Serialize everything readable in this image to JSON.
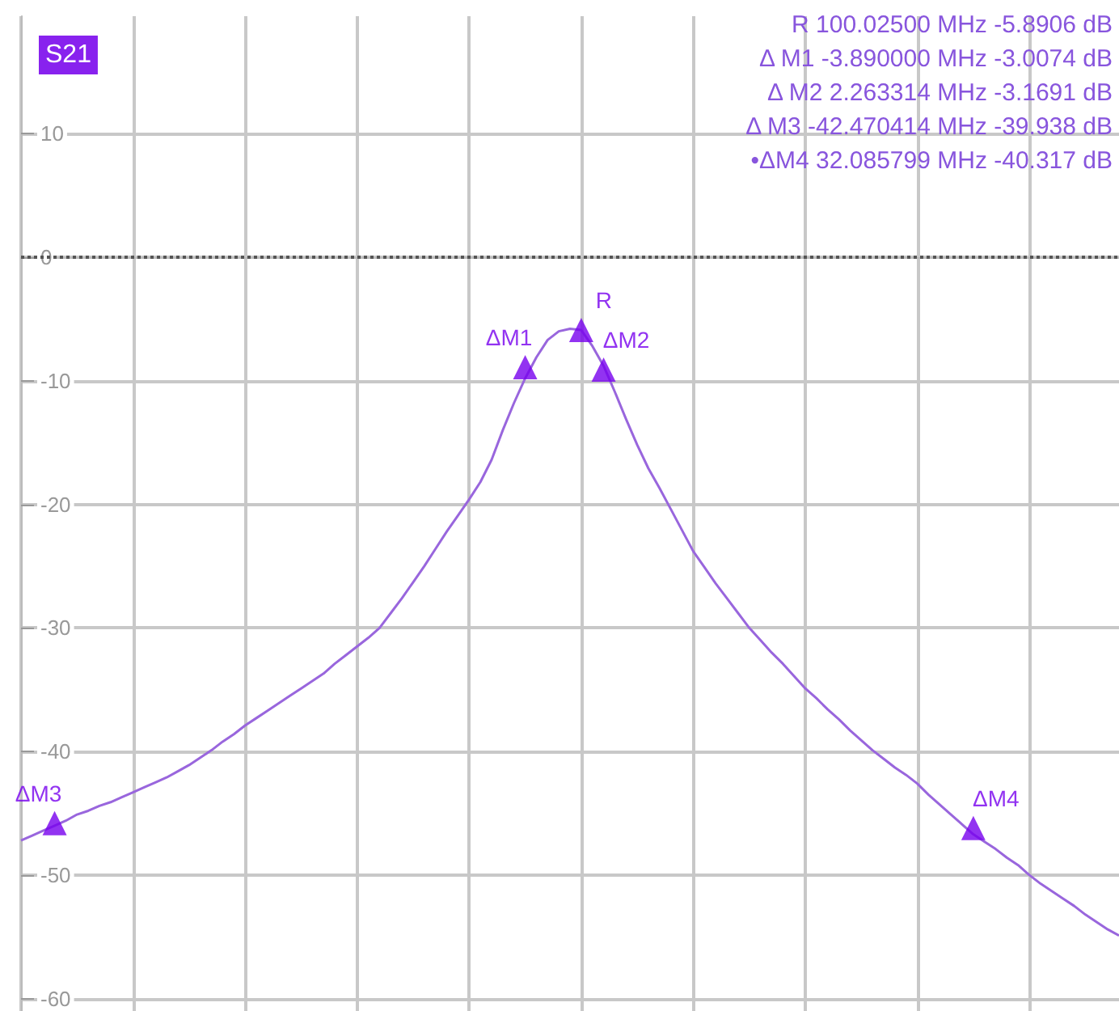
{
  "chart_data": {
    "type": "line",
    "title": "S21",
    "categories": [
      null,
      null,
      null,
      null,
      null,
      null,
      null,
      null,
      null,
      null,
      null,
      null,
      null,
      null,
      null,
      null,
      null,
      null,
      null,
      null,
      null,
      null,
      null,
      null,
      null,
      null,
      null,
      null,
      null,
      null,
      null,
      null,
      null,
      null,
      null,
      null,
      null,
      null,
      null,
      null,
      null,
      null,
      null,
      null,
      null,
      null,
      null,
      null,
      null,
      null,
      null,
      null,
      null,
      null,
      null,
      null,
      null,
      null,
      null,
      null,
      null,
      null,
      null,
      null,
      null,
      null,
      null,
      null,
      null,
      null,
      null,
      null,
      null,
      null,
      null,
      null,
      null,
      null,
      null,
      null,
      null,
      null,
      null,
      null,
      null,
      null,
      null,
      null,
      null,
      null,
      null,
      null,
      null,
      null,
      null,
      null,
      null,
      null,
      null
    ],
    "series": [
      {
        "type": "line",
        "color": "#9966dd",
        "marker": "none",
        "line_style": "solid",
        "values": [
          -47.2,
          -46.8,
          -46.4,
          -46.0,
          -45.6,
          -45.1,
          -44.8,
          -44.4,
          -44.1,
          -43.7,
          -43.3,
          -42.9,
          -42.5,
          -42.1,
          -41.6,
          -41.1,
          -40.5,
          -39.9,
          -39.2,
          -38.6,
          -37.9,
          -37.3,
          -36.7,
          -36.1,
          -35.5,
          -34.9,
          -34.3,
          -33.7,
          -32.9,
          -32.2,
          -31.5,
          -30.8,
          -30.0,
          -28.8,
          -27.6,
          -26.3,
          -25.0,
          -23.6,
          -22.2,
          -20.9,
          -19.6,
          -18.2,
          -16.4,
          -14.0,
          -11.8,
          -9.8,
          -8.1,
          -6.7,
          -6.0,
          -5.8,
          -5.9,
          -7.2,
          -8.8,
          -10.9,
          -13.1,
          -15.2,
          -17.1,
          -18.7,
          -20.4,
          -22.1,
          -23.8,
          -25.1,
          -26.4,
          -27.6,
          -28.8,
          -30.0,
          -31.0,
          -32.0,
          -32.9,
          -33.9,
          -34.9,
          -35.7,
          -36.6,
          -37.4,
          -38.3,
          -39.1,
          -39.9,
          -40.6,
          -41.3,
          -41.9,
          -42.6,
          -43.5,
          -44.3,
          -45.1,
          -45.9,
          -46.7,
          -47.3,
          -47.9,
          -48.6,
          -49.2,
          -50.0,
          -50.7,
          -51.3,
          -51.9,
          -52.5,
          -53.2,
          -53.8,
          -54.4,
          -54.9
        ]
      },
      {
        "type": "scatter",
        "color": "#7700ee",
        "marker": "triangle",
        "values": [
          null,
          null,
          null,
          -45.8,
          null,
          null,
          null,
          null,
          null,
          null,
          null,
          null,
          null,
          null,
          null,
          null,
          null,
          null,
          null,
          null,
          null,
          null,
          null,
          null,
          null,
          null,
          null,
          null,
          null,
          null,
          null,
          null,
          null,
          null,
          null,
          null,
          null,
          null,
          null,
          null,
          null,
          null,
          null,
          null,
          null,
          -8.9,
          null,
          null,
          null,
          null,
          -5.9,
          null,
          -9.1,
          null,
          null,
          null,
          null,
          null,
          null,
          null,
          null,
          null,
          null,
          null,
          null,
          null,
          null,
          null,
          null,
          null,
          null,
          null,
          null,
          null,
          null,
          null,
          null,
          null,
          null,
          null,
          null,
          null,
          null,
          null,
          null,
          -46.2,
          null,
          null,
          null,
          null,
          null,
          null,
          null,
          null,
          null,
          null,
          null,
          null,
          null
        ],
        "value_labels": [
          null,
          null,
          null,
          "ΔM3",
          null,
          null,
          null,
          null,
          null,
          null,
          null,
          null,
          null,
          null,
          null,
          null,
          null,
          null,
          null,
          null,
          null,
          null,
          null,
          null,
          null,
          null,
          null,
          null,
          null,
          null,
          null,
          null,
          null,
          null,
          null,
          null,
          null,
          null,
          null,
          null,
          null,
          null,
          null,
          null,
          null,
          "ΔM1",
          null,
          null,
          null,
          null,
          "R",
          null,
          "ΔM2",
          null,
          null,
          null,
          null,
          null,
          null,
          null,
          null,
          null,
          null,
          null,
          null,
          null,
          null,
          null,
          null,
          null,
          null,
          null,
          null,
          null,
          null,
          null,
          null,
          null,
          null,
          null,
          null,
          null,
          null,
          null,
          null,
          "ΔM4",
          null,
          null,
          null,
          null,
          null,
          null,
          null,
          null,
          null,
          null,
          null,
          null,
          null
        ]
      }
    ],
    "ylim": [
      -61,
      19.5
    ],
    "yticks": [
      -60,
      -50,
      -40,
      -30,
      -20,
      -10,
      0,
      10
    ],
    "grid": true,
    "legend": false,
    "tick_labels": "y",
    "ref_lines": [
      {
        "axis": "y",
        "value": 0,
        "line_style": "dotted",
        "color": "#555555"
      }
    ],
    "annotations": [
      "R 100.02500 MHz -5.8906 dB",
      "Δ M1 -3.890000 MHz -3.0074 dB",
      "Δ M2 2.263314 MHz -3.1691 dB",
      "Δ M3 -42.470414 MHz -39.938 dB",
      "•ΔM4 32.085799 MHz -40.317 dB"
    ]
  }
}
